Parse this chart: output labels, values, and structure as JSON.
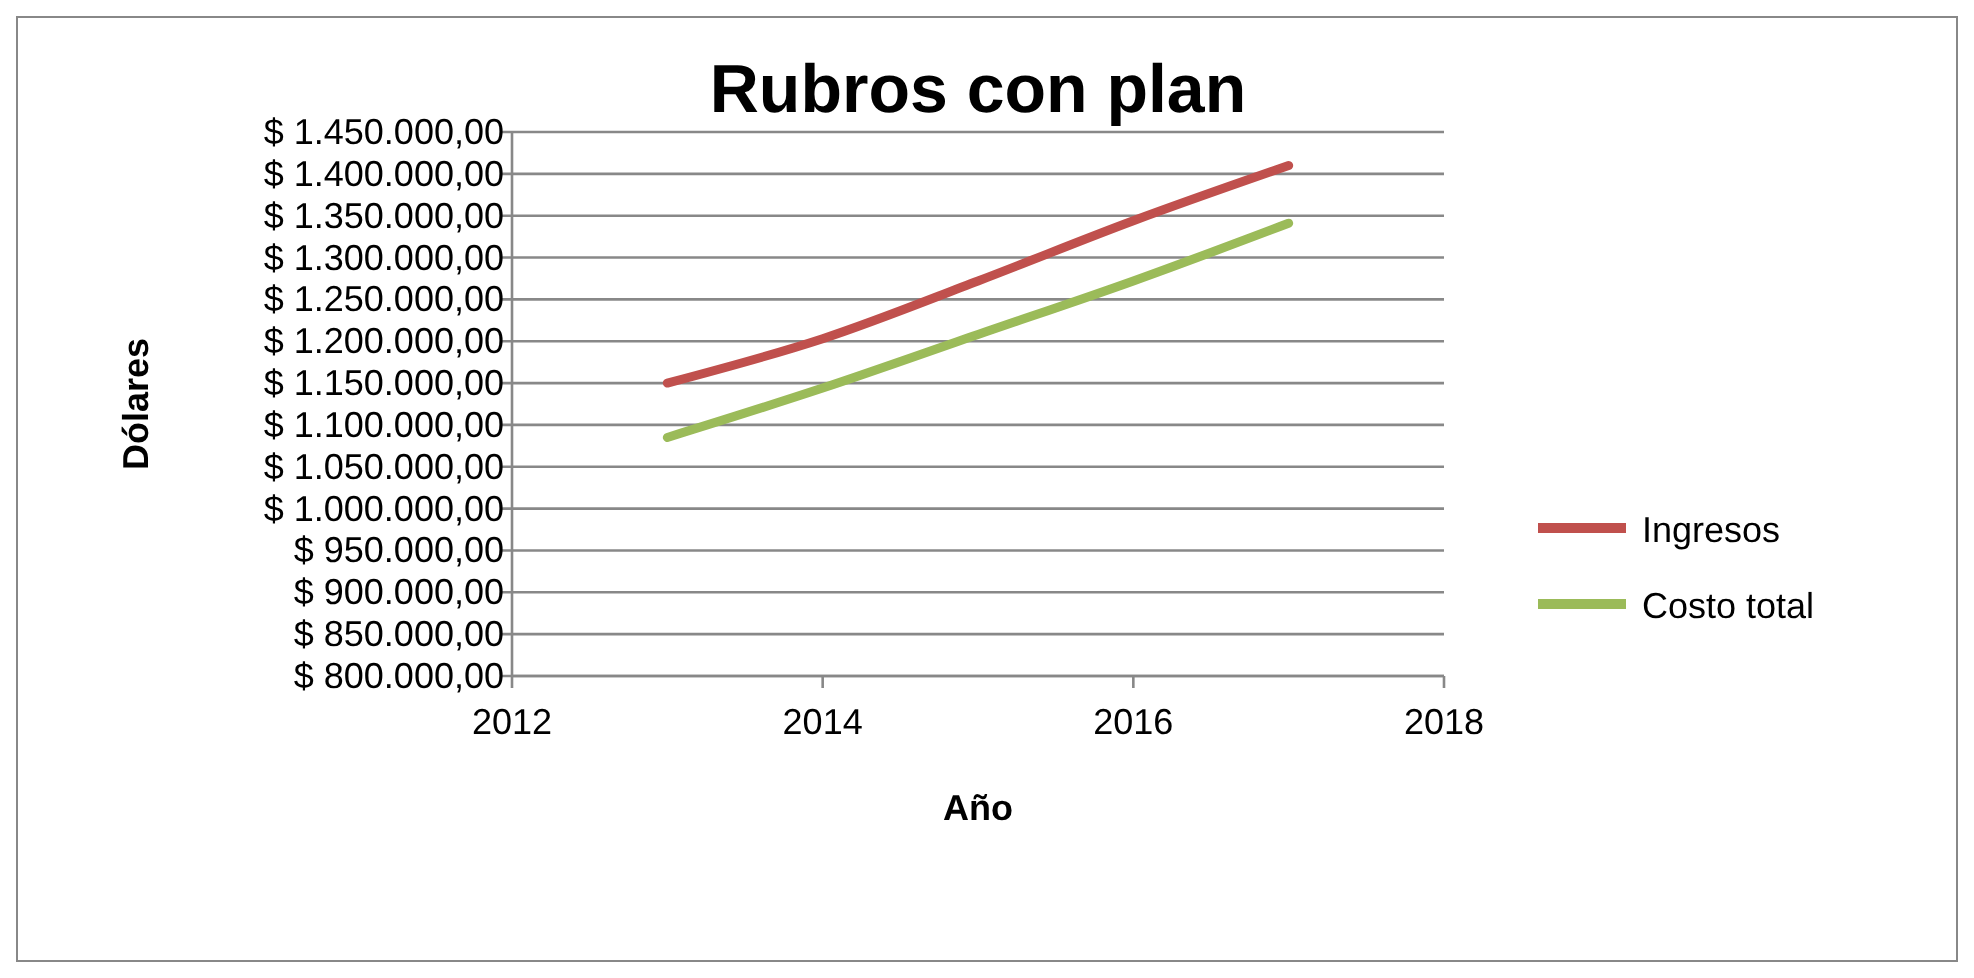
{
  "chart_data": {
    "type": "line",
    "title": "Rubros con plan",
    "xlabel": "Año",
    "ylabel": "Dólares",
    "x": [
      2013,
      2014,
      2015,
      2016,
      2017
    ],
    "series": [
      {
        "name": "Ingresos",
        "color": "#c0504d",
        "values": [
          1150000,
          1203000,
          1272000,
          1344000,
          1410000
        ]
      },
      {
        "name": "Costo total",
        "color": "#9bbb59",
        "values": [
          1085000,
          1144000,
          1208000,
          1272000,
          1341000
        ]
      }
    ],
    "xlim": [
      2012,
      2018
    ],
    "xticks": [
      2012,
      2014,
      2016,
      2018
    ],
    "ylim": [
      800000,
      1450000
    ],
    "yticks": [
      {
        "value": 800000,
        "label": "$ 800.000,00"
      },
      {
        "value": 850000,
        "label": "$ 850.000,00"
      },
      {
        "value": 900000,
        "label": "$ 900.000,00"
      },
      {
        "value": 950000,
        "label": "$ 950.000,00"
      },
      {
        "value": 1000000,
        "label": "$ 1.000.000,00"
      },
      {
        "value": 1050000,
        "label": "$ 1.050.000,00"
      },
      {
        "value": 1100000,
        "label": "$ 1.100.000,00"
      },
      {
        "value": 1150000,
        "label": "$ 1.150.000,00"
      },
      {
        "value": 1200000,
        "label": "$ 1.200.000,00"
      },
      {
        "value": 1250000,
        "label": "$ 1.250.000,00"
      },
      {
        "value": 1300000,
        "label": "$ 1.300.000,00"
      },
      {
        "value": 1350000,
        "label": "$ 1.350.000,00"
      },
      {
        "value": 1400000,
        "label": "$ 1.400.000,00"
      },
      {
        "value": 1450000,
        "label": "$ 1.450.000,00"
      }
    ],
    "grid": "y",
    "legend": "right",
    "marker": "none",
    "line_style": "solid"
  }
}
